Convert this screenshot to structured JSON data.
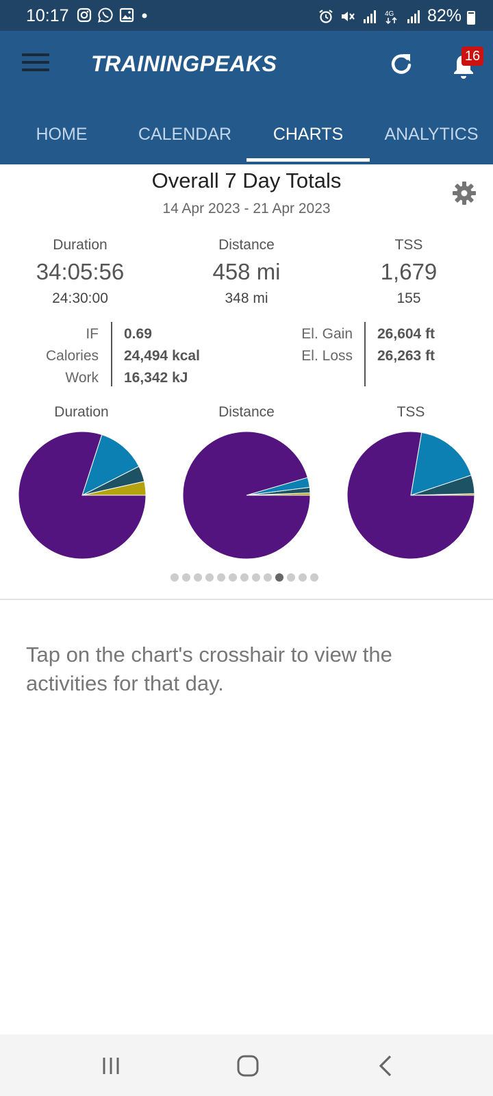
{
  "status_bar": {
    "time": "10:17",
    "battery": "82%",
    "battery_level": 0.82,
    "left_icons": [
      "instagram-icon",
      "whatsapp-icon",
      "gallery-icon",
      "dot-icon"
    ],
    "right_icons": [
      "alarm-icon",
      "mute-icon",
      "signal-icon",
      "4g-icon",
      "signal-icon"
    ]
  },
  "app_bar": {
    "logo": "TRAININGPEAKS",
    "notification_count": "16",
    "background": "#23598b"
  },
  "tabs": [
    {
      "label": "HOME",
      "active": false
    },
    {
      "label": "CALENDAR",
      "active": false
    },
    {
      "label": "CHARTS",
      "active": true
    },
    {
      "label": "ANALYTICS",
      "active": false
    }
  ],
  "totals": {
    "title": "Overall 7 Day Totals",
    "date_range": "14 Apr 2023 - 21 Apr 2023",
    "metrics": [
      {
        "label": "Duration",
        "value": "34:05:56",
        "planned": "24:30:00"
      },
      {
        "label": "Distance",
        "value": "458 mi",
        "planned": "348 mi"
      },
      {
        "label": "TSS",
        "value": "1,679",
        "planned": "155"
      }
    ],
    "left_stats": [
      {
        "label": "IF",
        "value": "0.69"
      },
      {
        "label": "Calories",
        "value": "24,494 kcal"
      },
      {
        "label": "Work",
        "value": "16,342 kJ"
      }
    ],
    "right_stats": [
      {
        "label": "El. Gain",
        "value": "26,604 ft"
      },
      {
        "label": "El. Loss",
        "value": "26,263 ft"
      }
    ]
  },
  "chart_data": [
    {
      "type": "pie",
      "title": "Duration",
      "slices": [
        {
          "value": 0.035,
          "color": "#b4a30e"
        },
        {
          "value": 0.04,
          "color": "#1d5265"
        },
        {
          "value": 0.125,
          "color": "#0d80b3"
        },
        {
          "value": 0.8,
          "color": "#54147f"
        }
      ]
    },
    {
      "type": "pie",
      "title": "Distance",
      "slices": [
        {
          "value": 0.006,
          "color": "#b4a30e"
        },
        {
          "value": 0.014,
          "color": "#1d5265"
        },
        {
          "value": 0.025,
          "color": "#0d80b3"
        },
        {
          "value": 0.955,
          "color": "#54147f"
        }
      ]
    },
    {
      "type": "pie",
      "title": "TSS",
      "slices": [
        {
          "value": 0.004,
          "color": "#b4a30e"
        },
        {
          "value": 0.047,
          "color": "#1d5265"
        },
        {
          "value": 0.172,
          "color": "#0d80b3"
        },
        {
          "value": 0.777,
          "color": "#54147f"
        }
      ]
    }
  ],
  "carousel": {
    "count": 13,
    "active_index": 9
  },
  "hint": "Tap on the chart's crosshair to view the activities for that day.",
  "nav_bar": {
    "buttons": [
      "recent-apps-icon",
      "home-icon",
      "back-icon"
    ]
  }
}
